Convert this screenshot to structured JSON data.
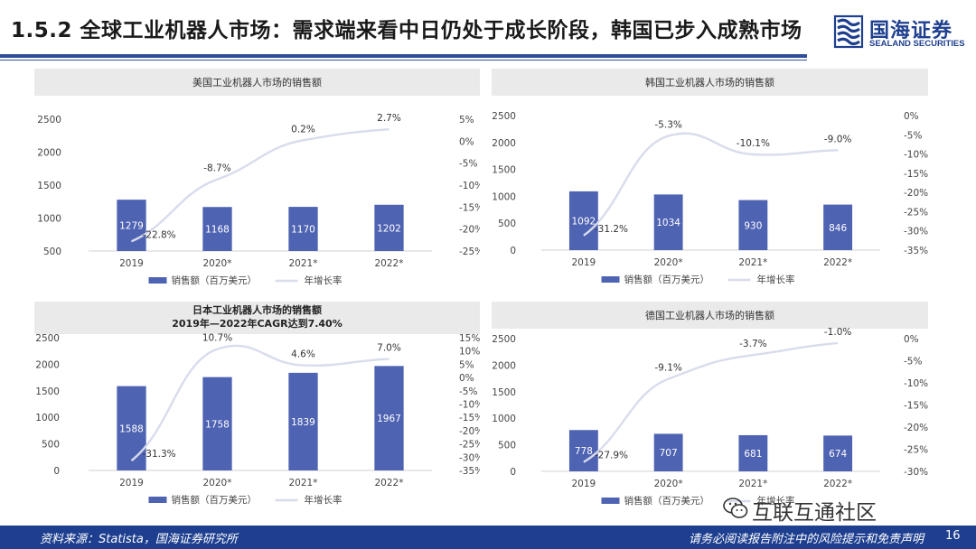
{
  "header": {
    "title": "1.5.2 全球工业机器人市场：需求端来看中日仍处于成长阶段，韩国已步入成熟市场"
  },
  "logo": {
    "name_cn": "国海证券",
    "name_en": "SEALAND SECURITIES"
  },
  "footer": {
    "source": "资料来源：Statista，国海证券研究所",
    "disclaimer": "请务必阅读报告附注中的风险提示和免责声明",
    "page": "16"
  },
  "watermark": {
    "text": "互联互通社区",
    "icon": "wechat-icon"
  },
  "colors": {
    "bar": "#4f63b3",
    "line": "#d8dcec",
    "panel_title_bg": "#eaeaea",
    "brand": "#1e3f8f"
  },
  "chart_data": [
    {
      "type": "bar",
      "title": "美国工业机器人市场的销售额",
      "categories": [
        "2019",
        "2020*",
        "2021*",
        "2022*"
      ],
      "series": [
        {
          "name": "销售额（百万美元）",
          "type": "bar",
          "axis": "left",
          "values": [
            1279,
            1168,
            1170,
            1202
          ]
        },
        {
          "name": "年增长率",
          "type": "line",
          "axis": "right",
          "values": [
            -22.8,
            -8.7,
            0.2,
            2.7
          ],
          "labels": [
            "-22.8%",
            "-8.7%",
            "0.2%",
            "2.7%"
          ]
        }
      ],
      "ylim": [
        500,
        2500
      ],
      "yticks": [
        "2500",
        "2000",
        "1500",
        "1000",
        "500"
      ],
      "y2lim": [
        -25,
        5
      ],
      "y2ticks": [
        "5%",
        "0%",
        "-5%",
        "-10%",
        "-15%",
        "-20%",
        "-25%"
      ],
      "legend": "bottom"
    },
    {
      "type": "bar",
      "title": "韩国工业机器人市场的销售额",
      "categories": [
        "2019",
        "2020*",
        "2021*",
        "2022*"
      ],
      "series": [
        {
          "name": "销售额（百万美元）",
          "type": "bar",
          "axis": "left",
          "values": [
            1092,
            1034,
            930,
            846
          ]
        },
        {
          "name": "年增长率",
          "type": "line",
          "axis": "right",
          "values": [
            -31.2,
            -5.3,
            -10.1,
            -9.0
          ],
          "labels": [
            "-31.2%",
            "-5.3%",
            "-10.1%",
            "-9.0%"
          ]
        }
      ],
      "ylim": [
        0,
        2500
      ],
      "yticks": [
        "2500",
        "2000",
        "1500",
        "1000",
        "500",
        "0"
      ],
      "y2lim": [
        -35,
        0
      ],
      "y2ticks": [
        "0%",
        "-5%",
        "-10%",
        "-15%",
        "-20%",
        "-25%",
        "-30%",
        "-35%"
      ],
      "legend": "bottom"
    },
    {
      "type": "bar",
      "title": "日本工业机器人市场的销售额",
      "subtitle": "2019年—2022年CAGR达到7.40%",
      "categories": [
        "2019",
        "2020*",
        "2021*",
        "2022*"
      ],
      "series": [
        {
          "name": "销售额（百万美元）",
          "type": "bar",
          "axis": "left",
          "values": [
            1588,
            1758,
            1839,
            1967
          ]
        },
        {
          "name": "年增长率",
          "type": "line",
          "axis": "right",
          "values": [
            -31.3,
            10.7,
            4.6,
            7.0
          ],
          "labels": [
            "-31.3%",
            "10.7%",
            "4.6%",
            "7.0%"
          ]
        }
      ],
      "ylim": [
        0,
        2500
      ],
      "yticks": [
        "2500",
        "2000",
        "1500",
        "1000",
        "500",
        "0"
      ],
      "y2lim": [
        -35,
        15
      ],
      "y2ticks": [
        "15%",
        "10%",
        "5%",
        "0%",
        "-5%",
        "-10%",
        "-15%",
        "-20%",
        "-25%",
        "-30%",
        "-35%"
      ],
      "legend": "bottom"
    },
    {
      "type": "bar",
      "title": "德国工业机器人市场的销售额",
      "categories": [
        "2019",
        "2020*",
        "2021*",
        "2022*"
      ],
      "series": [
        {
          "name": "销售额（百万美元）",
          "type": "bar",
          "axis": "left",
          "values": [
            778,
            707,
            681,
            674
          ]
        },
        {
          "name": "年增长率",
          "type": "line",
          "axis": "right",
          "values": [
            -27.9,
            -9.1,
            -3.7,
            -1.0
          ],
          "labels": [
            "-27.9%",
            "-9.1%",
            "-3.7%",
            "-1.0%"
          ]
        }
      ],
      "ylim": [
        0,
        2500
      ],
      "yticks": [
        "2500",
        "2000",
        "1500",
        "1000",
        "500",
        "0"
      ],
      "y2lim": [
        -30,
        0
      ],
      "y2ticks": [
        "0%",
        "-5%",
        "-10%",
        "-15%",
        "-20%",
        "-25%",
        "-30%"
      ],
      "legend": "bottom"
    }
  ]
}
